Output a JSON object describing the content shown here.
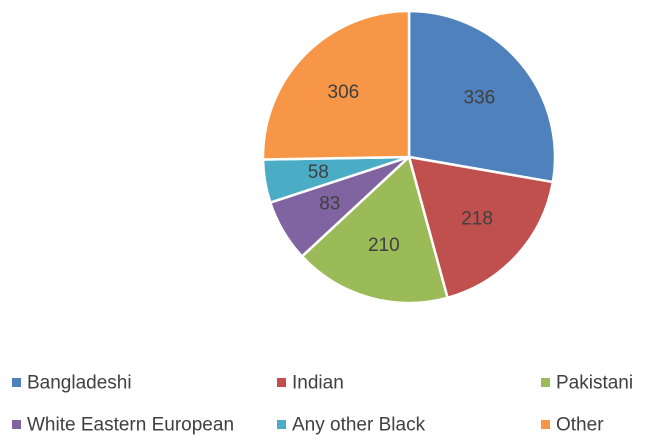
{
  "chart_data": {
    "type": "pie",
    "title": "",
    "categories": [
      "Bangladeshi",
      "Indian",
      "Pakistani",
      "White Eastern European",
      "Any other Black",
      "Other"
    ],
    "values": [
      336,
      218,
      210,
      83,
      58,
      306
    ],
    "colors": [
      "#4F81BD",
      "#C0504D",
      "#9BBB59",
      "#8064A2",
      "#4BACC6",
      "#F79646"
    ],
    "data_labels": [
      "336",
      "218",
      "210",
      "83",
      "58",
      "306"
    ],
    "start_angle_deg": 0,
    "direction": "clockwise",
    "legend_position": "bottom"
  }
}
